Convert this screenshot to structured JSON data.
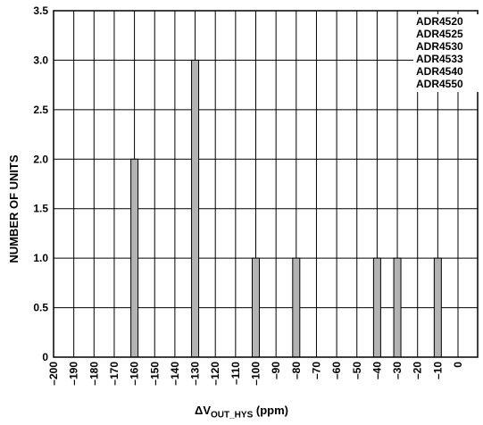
{
  "chart_data": {
    "type": "bar",
    "x_categories": [
      "-200",
      "-190",
      "-180",
      "-170",
      "-160",
      "-150",
      "-140",
      "-130",
      "-120",
      "-110",
      "-100",
      "-90",
      "-80",
      "-70",
      "-60",
      "-50",
      "-40",
      "-30",
      "-20",
      "-10",
      "0"
    ],
    "x_tick_labels": [
      "–200",
      "–190",
      "–180",
      "–170",
      "–160",
      "–150",
      "–140",
      "–130",
      "–120",
      "–110",
      "–100",
      "–90",
      "–80",
      "–70",
      "–60",
      "–50",
      "–40",
      "–30",
      "–20",
      "–10",
      "0"
    ],
    "bars": [
      {
        "x": -160,
        "value": 2
      },
      {
        "x": -130,
        "value": 3
      },
      {
        "x": -100,
        "value": 1
      },
      {
        "x": -80,
        "value": 1
      },
      {
        "x": -40,
        "value": 1
      },
      {
        "x": -30,
        "value": 1
      },
      {
        "x": -10,
        "value": 1
      }
    ],
    "y_tick_labels": [
      "0",
      "0.5",
      "1.0",
      "1.5",
      "2.0",
      "2.5",
      "3.0",
      "3.5"
    ],
    "ylim": [
      0,
      3.5
    ],
    "xlim": [
      -200,
      0
    ],
    "ylabel": "NUMBER OF UNITS",
    "xlabel_main": "ΔV",
    "xlabel_sub": "OUT_HYS",
    "xlabel_unit": "(ppm)",
    "legend_entries": [
      "ADR4520",
      "ADR4525",
      "ADR4530",
      "ADR4533",
      "ADR4540",
      "ADR4550"
    ],
    "legend_position": "top-right",
    "grid": true,
    "bar_color": "#b3b3b3"
  }
}
